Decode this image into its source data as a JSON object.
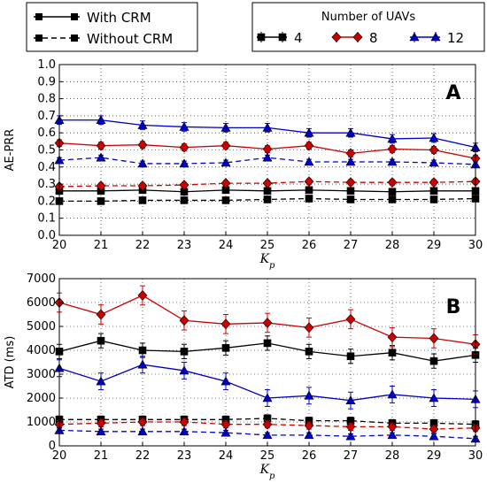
{
  "legend_style": {
    "with_crm": "With CRM",
    "without_crm": "Without CRM"
  },
  "legend_uavs": {
    "title": "Number of UAVs",
    "entries": [
      {
        "label": "4",
        "color": "#000000",
        "marker": "square"
      },
      {
        "label": "8",
        "color": "#cc0000",
        "marker": "diamond"
      },
      {
        "label": "12",
        "color": "#0000cc",
        "marker": "triangle"
      }
    ]
  },
  "chart_data": [
    {
      "type": "line",
      "panel": "A",
      "xlabel": "K_p",
      "ylabel": "AE-PRR",
      "x": [
        20,
        21,
        22,
        23,
        24,
        25,
        26,
        27,
        28,
        29,
        30
      ],
      "xlim": [
        20,
        30
      ],
      "ylim": [
        0,
        1.0
      ],
      "yticks": [
        "0.0",
        "0.1",
        "0.2",
        "0.3",
        "0.4",
        "0.5",
        "0.6",
        "0.7",
        "0.8",
        "0.9",
        "1.0"
      ],
      "xticks": [
        "20",
        "21",
        "22",
        "23",
        "24",
        "25",
        "26",
        "27",
        "28",
        "29",
        "30"
      ],
      "grid": true,
      "series": [
        {
          "name": "4",
          "crm": "with",
          "color": "#000000",
          "marker": "square",
          "dashed": false,
          "values": [
            0.26,
            0.26,
            0.265,
            0.255,
            0.265,
            0.26,
            0.265,
            0.26,
            0.255,
            0.26,
            0.26
          ],
          "err": 0.015
        },
        {
          "name": "4",
          "crm": "without",
          "color": "#000000",
          "marker": "square",
          "dashed": true,
          "values": [
            0.2,
            0.2,
            0.205,
            0.205,
            0.205,
            0.21,
            0.215,
            0.21,
            0.21,
            0.21,
            0.215
          ],
          "err": 0.01
        },
        {
          "name": "8",
          "crm": "with",
          "color": "#cc0000",
          "marker": "diamond",
          "dashed": false,
          "values": [
            0.54,
            0.525,
            0.53,
            0.515,
            0.525,
            0.505,
            0.525,
            0.48,
            0.505,
            0.5,
            0.45
          ],
          "err": 0.02
        },
        {
          "name": "8",
          "crm": "without",
          "color": "#cc0000",
          "marker": "diamond",
          "dashed": true,
          "values": [
            0.285,
            0.29,
            0.29,
            0.295,
            0.305,
            0.305,
            0.315,
            0.31,
            0.31,
            0.31,
            0.315
          ],
          "err": 0.015
        },
        {
          "name": "12",
          "crm": "with",
          "color": "#0000cc",
          "marker": "triangle",
          "dashed": false,
          "values": [
            0.675,
            0.675,
            0.645,
            0.635,
            0.63,
            0.63,
            0.6,
            0.6,
            0.565,
            0.57,
            0.515
          ],
          "err": 0.025
        },
        {
          "name": "12",
          "crm": "without",
          "color": "#0000cc",
          "marker": "triangle",
          "dashed": true,
          "values": [
            0.44,
            0.455,
            0.42,
            0.42,
            0.425,
            0.455,
            0.43,
            0.43,
            0.43,
            0.425,
            0.415
          ],
          "err": 0.015
        }
      ]
    },
    {
      "type": "line",
      "panel": "B",
      "xlabel": "K_p",
      "ylabel": "ATD (ms)",
      "x": [
        20,
        21,
        22,
        23,
        24,
        25,
        26,
        27,
        28,
        29,
        30
      ],
      "xlim": [
        20,
        30
      ],
      "ylim": [
        0,
        7000
      ],
      "yticks": [
        "0",
        "1000",
        "2000",
        "3000",
        "4000",
        "5000",
        "6000",
        "7000"
      ],
      "xticks": [
        "20",
        "21",
        "22",
        "23",
        "24",
        "25",
        "26",
        "27",
        "28",
        "29",
        "30"
      ],
      "grid": true,
      "series": [
        {
          "name": "4",
          "crm": "with",
          "color": "#000000",
          "marker": "square",
          "dashed": false,
          "values": [
            3950,
            4400,
            4000,
            3950,
            4100,
            4300,
            3950,
            3750,
            3900,
            3550,
            3800
          ],
          "err": 300
        },
        {
          "name": "4",
          "crm": "without",
          "color": "#000000",
          "marker": "square",
          "dashed": true,
          "values": [
            1100,
            1100,
            1100,
            1100,
            1100,
            1150,
            1050,
            1050,
            950,
            950,
            900
          ],
          "err": 150
        },
        {
          "name": "8",
          "crm": "with",
          "color": "#cc0000",
          "marker": "diamond",
          "dashed": false,
          "values": [
            6000,
            5500,
            6300,
            5250,
            5100,
            5150,
            4950,
            5300,
            4550,
            4500,
            4250
          ],
          "err": 400
        },
        {
          "name": "8",
          "crm": "without",
          "color": "#cc0000",
          "marker": "diamond",
          "dashed": true,
          "values": [
            900,
            950,
            1000,
            1000,
            900,
            900,
            850,
            800,
            800,
            700,
            750
          ],
          "err": 150
        },
        {
          "name": "12",
          "crm": "with",
          "color": "#0000cc",
          "marker": "triangle",
          "dashed": false,
          "values": [
            3250,
            2700,
            3400,
            3150,
            2700,
            2000,
            2100,
            1900,
            2150,
            2000,
            1950
          ],
          "err": 350
        },
        {
          "name": "12",
          "crm": "without",
          "color": "#0000cc",
          "marker": "triangle",
          "dashed": true,
          "values": [
            650,
            600,
            600,
            600,
            550,
            450,
            450,
            400,
            450,
            400,
            300
          ],
          "err": 100
        }
      ]
    }
  ]
}
